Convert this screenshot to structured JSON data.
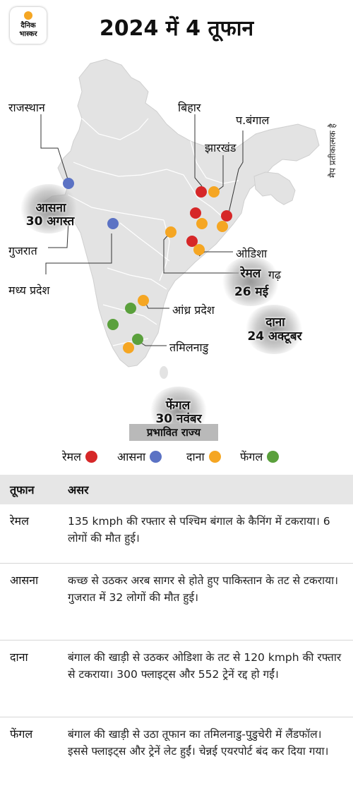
{
  "header": {
    "logo_line1": "दैनिक",
    "logo_line2": "भास्कर",
    "title": "2024 में 4 तूफान"
  },
  "map": {
    "labels": {
      "rajasthan": "राजस्थान",
      "bihar": "बिहार",
      "west_bengal": "प.बंगाल",
      "jharkhand": "झारखंड",
      "gujarat": "गुजरात",
      "madhya_pradesh": "मध्य प्रदेश",
      "odisha": "ओडिशा",
      "chhattisgarh_partial": "गढ़",
      "andhra_pradesh": "आंध्र प्रदेश",
      "tamil_nadu": "तमिलनाडु"
    },
    "side_note": "मैप प्रतीकात्मक है",
    "cyclones": {
      "asna": {
        "name": "आसना",
        "date": "30 अगस्त"
      },
      "remal": {
        "name": "रेमल",
        "date": "26 मई"
      },
      "dana": {
        "name": "दाना",
        "date": "24 अक्टूबर"
      },
      "fengal": {
        "name": "फेंगल",
        "date": "30 नवंबर"
      }
    },
    "affected_label": "प्रभावित राज्य",
    "colors": {
      "remal": "#d62728",
      "asna": "#5b72c4",
      "dana": "#f5a623",
      "fengal": "#5aa03c",
      "land": "#e3e3e3",
      "border": "#ffffff"
    }
  },
  "legend": [
    {
      "label": "रेमल",
      "color": "#d62728"
    },
    {
      "label": "आसना",
      "color": "#5b72c4"
    },
    {
      "label": "दाना",
      "color": "#f5a623"
    },
    {
      "label": "फेंगल",
      "color": "#5aa03c"
    }
  ],
  "table": {
    "headers": {
      "col1": "तूफान",
      "col2": "असर"
    },
    "rows": [
      {
        "name": "रेमल",
        "effect": "135 kmph की रफ्तार से पश्चिम बंगाल के कैनिंग में टकराया। 6 लोगों की मौत हुई।"
      },
      {
        "name": "आसना",
        "effect": "कच्छ से उठकर अरब सागर से होते हुए पाकिस्तान के तट से टकराया। गुजरात में 32 लोगों की मौत हुई।"
      },
      {
        "name": "दाना",
        "effect": "बंगाल की खाड़ी से उठकर ओडिशा के तट से 120 kmph की रफ्तार से टकराया। 300 फ्लाइट्स और 552 ट्रेनें रद्द हो गईं।"
      },
      {
        "name": "फेंगल",
        "effect": "बंगाल की खाड़ी से उठा तूफान का तमिलनाडु-पुडुचेरी में लैंडफॉल। इससे फ्लाइट्स और ट्रेनें लेट हुईं। चेन्नई एयरपोर्ट बंद कर दिया गया।"
      }
    ]
  }
}
